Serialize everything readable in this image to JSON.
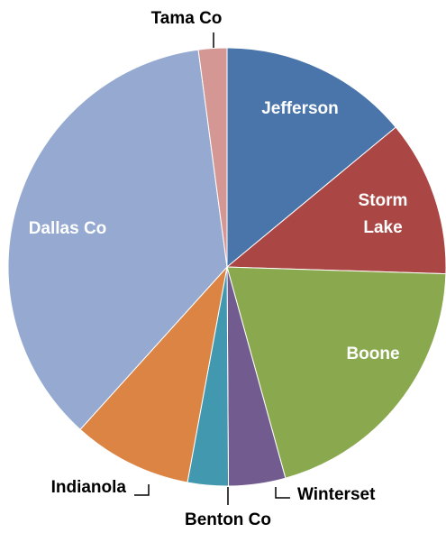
{
  "chart_data": {
    "type": "pie",
    "slices": [
      {
        "label": "Jefferson",
        "value": 14.0,
        "color": "#4a75ab"
      },
      {
        "label": "Storm Lake",
        "value": 11.5,
        "color": "#aa4644"
      },
      {
        "label": "Boone",
        "value": 20.2,
        "color": "#8aa94f"
      },
      {
        "label": "Winterset",
        "value": 4.2,
        "color": "#725b8f"
      },
      {
        "label": "Benton Co",
        "value": 3.0,
        "color": "#4298ae"
      },
      {
        "label": "Indianola",
        "value": 8.8,
        "color": "#db8443"
      },
      {
        "label": "Dallas Co",
        "value": 36.2,
        "color": "#95a9d1"
      },
      {
        "label": "Tama Co",
        "value": 2.1,
        "color": "#d59794"
      }
    ],
    "start_angle_deg": 0,
    "direction": "clockwise",
    "legend": "none"
  }
}
